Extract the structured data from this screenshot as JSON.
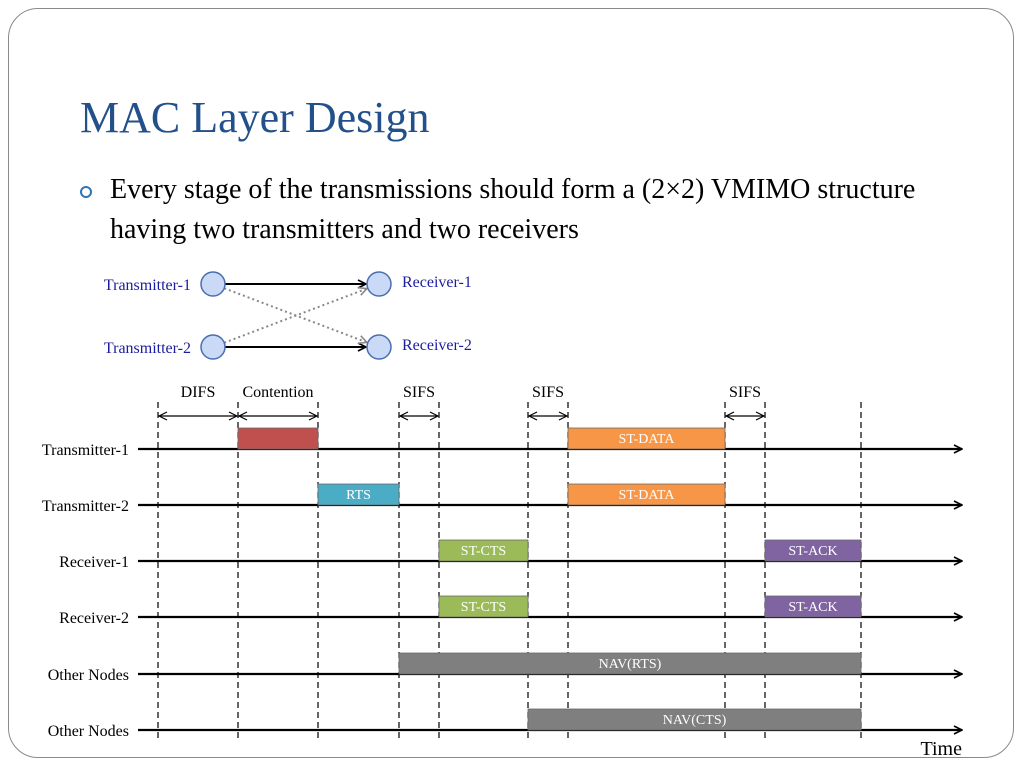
{
  "slide": {
    "title": "MAC Layer Design",
    "bullet": "Every stage of the transmissions should form a (2×2) VMIMO structure having two transmitters and two receivers"
  },
  "vmimo": {
    "transmitters": [
      "Transmitter-1",
      "Transmitter-2"
    ],
    "receivers": [
      "Receiver-1",
      "Receiver-2"
    ],
    "links": [
      {
        "from": "Transmitter-1",
        "to": "Receiver-1",
        "style": "solid"
      },
      {
        "from": "Transmitter-2",
        "to": "Receiver-2",
        "style": "solid"
      },
      {
        "from": "Transmitter-1",
        "to": "Receiver-2",
        "style": "dotted"
      },
      {
        "from": "Transmitter-2",
        "to": "Receiver-1",
        "style": "dotted"
      }
    ],
    "node_color": "#c9d9f6"
  },
  "timeline": {
    "time_label": "Time",
    "intervals": [
      {
        "label": "DIFS",
        "from": 0,
        "to": 1
      },
      {
        "label": "Contention",
        "from": 1,
        "to": 2
      },
      {
        "label": "SIFS",
        "from": 3,
        "to": 4
      },
      {
        "label": "SIFS",
        "from": 6,
        "to": 7
      },
      {
        "label": "SIFS",
        "from": 11,
        "to": 12
      }
    ],
    "rows": [
      {
        "label": "Transmitter-1",
        "frames": [
          {
            "label": "",
            "from": 1,
            "to": 2,
            "color": "#c0504d"
          },
          {
            "label": "ST-DATA",
            "from": 7,
            "to": 11,
            "color": "#f79646"
          }
        ]
      },
      {
        "label": "Transmitter-2",
        "frames": [
          {
            "label": "RTS",
            "from": 2,
            "to": 3,
            "color": "#4bacc6"
          },
          {
            "label": "ST-DATA",
            "from": 7,
            "to": 11,
            "color": "#f79646"
          }
        ]
      },
      {
        "label": "Receiver-1",
        "frames": [
          {
            "label": "ST-CTS",
            "from": 4,
            "to": 6,
            "color": "#9bbb59"
          },
          {
            "label": "ST-ACK",
            "from": 12,
            "to": 14,
            "color": "#8064a2"
          }
        ]
      },
      {
        "label": "Receiver-2",
        "frames": [
          {
            "label": "ST-CTS",
            "from": 4,
            "to": 6,
            "color": "#9bbb59"
          },
          {
            "label": "ST-ACK",
            "from": 12,
            "to": 14,
            "color": "#8064a2"
          }
        ]
      },
      {
        "label": "Other Nodes",
        "frames": [
          {
            "label": "NAV(RTS)",
            "from": 3,
            "to": 14,
            "color": "#7f7f7f"
          }
        ]
      },
      {
        "label": "Other Nodes",
        "frames": [
          {
            "label": "NAV(CTS)",
            "from": 6,
            "to": 14,
            "color": "#7f7f7f"
          }
        ]
      }
    ]
  }
}
